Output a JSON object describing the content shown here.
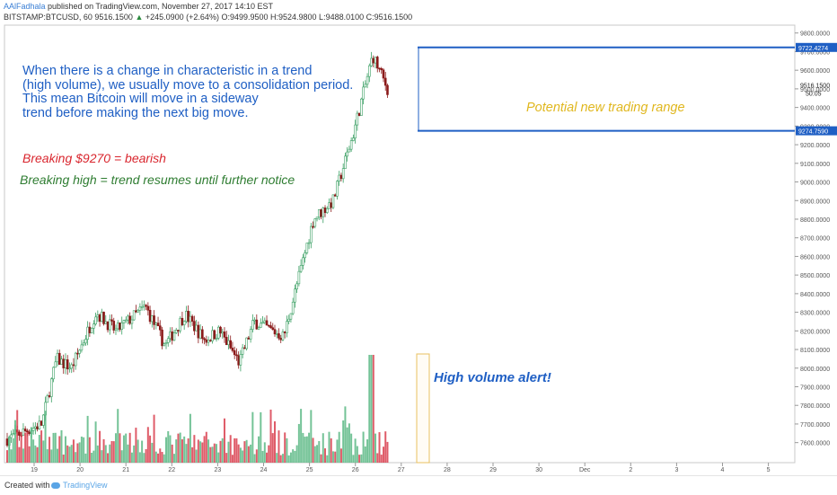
{
  "header": {
    "user": "AAlFadhala",
    "published": " published on TradingView.com, November 27, 2017 14:10 EST",
    "symbol": "BITSTAMP:BTCUSD, 60",
    "price": "9516.1500",
    "change": "+245.0900 (+2.64%)",
    "ohlc": "O:9499.9500 H:9524.9800 L:9488.0100 C:9516.1500"
  },
  "annotations": {
    "main": [
      "When there is a change in characteristic in a trend",
      "(high volume), we usually move to a consolidation period.",
      "This mean Bitcoin will move in a sideway",
      "trend before making the next big move."
    ],
    "bearish": "Breaking $9270 = bearish",
    "high": "Breaking high = trend resumes until further notice",
    "range": "Potential new trading range",
    "volume": "High volume alert!"
  },
  "footer": {
    "created": "Created with",
    "brand": "TradingView"
  },
  "chart_data": {
    "type": "candlestick",
    "y_ticks": [
      "9900.0000",
      "9800.0000",
      "9700.0000",
      "9600.0000",
      "9500.0000",
      "9400.0000",
      "9300.0000",
      "9200.0000",
      "9100.0000",
      "9000.0000",
      "8900.0000",
      "8800.0000",
      "8700.0000",
      "8600.0000",
      "8500.0000",
      "8400.0000",
      "8300.0000",
      "8200.0000",
      "8100.0000",
      "8000.0000",
      "7900.0000",
      "7800.0000",
      "7700.0000",
      "7600.0000"
    ],
    "x_ticks": [
      "19",
      "20",
      "21",
      "22",
      "23",
      "24",
      "25",
      "26",
      "27",
      "28",
      "29",
      "30",
      "Dec",
      "2",
      "3",
      "4",
      "5"
    ],
    "ylim": [
      7550,
      9960
    ],
    "price_label": "9516.1500",
    "countdown": "50:05",
    "levels": [
      {
        "label": "9722.4274",
        "value": 9722.4274,
        "color": "#1f5fc4"
      },
      {
        "label": "9274.7590",
        "value": 9274.759,
        "color": "#1f5fc4"
      }
    ],
    "colors": {
      "up": "#3a9f63",
      "down": "#8b1a1a",
      "vol_up": "#5cb985",
      "vol_down": "#d9404f",
      "level": "#1f5fc4",
      "highlight": "#e8c060"
    },
    "anchors": [
      {
        "t": 0,
        "p": 7620
      },
      {
        "t": 0.7,
        "p": 7700
      },
      {
        "t": 1.0,
        "p": 8050
      },
      {
        "t": 1.3,
        "p": 8000
      },
      {
        "t": 1.8,
        "p": 8300
      },
      {
        "t": 2.2,
        "p": 8200
      },
      {
        "t": 2.8,
        "p": 8330
      },
      {
        "t": 3.2,
        "p": 8120
      },
      {
        "t": 3.6,
        "p": 8290
      },
      {
        "t": 4.0,
        "p": 8150
      },
      {
        "t": 4.3,
        "p": 8200
      },
      {
        "t": 4.7,
        "p": 8030
      },
      {
        "t": 5.0,
        "p": 8250
      },
      {
        "t": 5.6,
        "p": 8170
      },
      {
        "t": 6.2,
        "p": 8800
      },
      {
        "t": 6.6,
        "p": 8900
      },
      {
        "t": 7.0,
        "p": 9250
      },
      {
        "t": 7.4,
        "p": 9680
      },
      {
        "t": 7.7,
        "p": 9500
      }
    ]
  }
}
